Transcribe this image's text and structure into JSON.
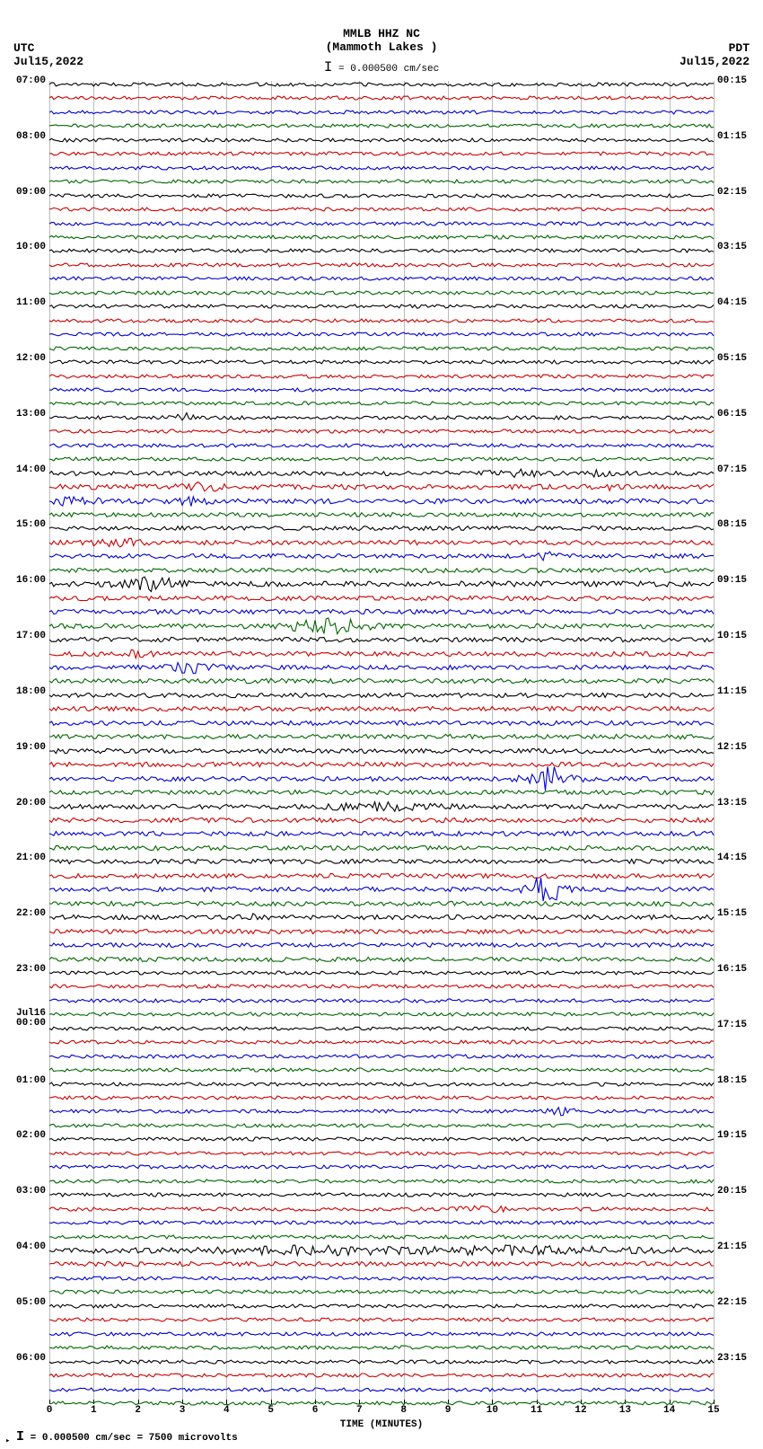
{
  "header": {
    "title": "MMLB HHZ NC",
    "subtitle": "(Mammoth Lakes )",
    "scale_top": "= 0.000500 cm/sec",
    "tz_left_label": "UTC",
    "tz_left_date": "Jul15,2022",
    "tz_right_label": "PDT",
    "tz_right_date": "Jul15,2022"
  },
  "axes": {
    "x_label": "TIME (MINUTES)",
    "x_ticks": [
      "0",
      "1",
      "2",
      "3",
      "4",
      "5",
      "6",
      "7",
      "8",
      "9",
      "10",
      "11",
      "12",
      "13",
      "14",
      "15"
    ],
    "grid_color": "#bcbcbc",
    "background_color": "#ffffff",
    "text_color": "#000000",
    "trace_colors": [
      "#000000",
      "#cc0000",
      "#0000cc",
      "#006600"
    ],
    "num_traces": 96,
    "row_spacing_frac": 0.01042,
    "font_family": "Courier New",
    "font_size_label": 11,
    "font_size_title": 13,
    "trace_linewidth": 1.1,
    "noise_amp_base": 2.0
  },
  "left_ticks": [
    {
      "row": 0,
      "label": "07:00"
    },
    {
      "row": 4,
      "label": "08:00"
    },
    {
      "row": 8,
      "label": "09:00"
    },
    {
      "row": 12,
      "label": "10:00"
    },
    {
      "row": 16,
      "label": "11:00"
    },
    {
      "row": 20,
      "label": "12:00"
    },
    {
      "row": 24,
      "label": "13:00"
    },
    {
      "row": 28,
      "label": "14:00"
    },
    {
      "row": 32,
      "label": "15:00"
    },
    {
      "row": 36,
      "label": "16:00"
    },
    {
      "row": 40,
      "label": "17:00"
    },
    {
      "row": 44,
      "label": "18:00"
    },
    {
      "row": 48,
      "label": "19:00"
    },
    {
      "row": 52,
      "label": "20:00"
    },
    {
      "row": 56,
      "label": "21:00"
    },
    {
      "row": 60,
      "label": "22:00"
    },
    {
      "row": 64,
      "label": "23:00"
    },
    {
      "row": 68,
      "label": "Jul16\n00:00"
    },
    {
      "row": 72,
      "label": "01:00"
    },
    {
      "row": 76,
      "label": "02:00"
    },
    {
      "row": 80,
      "label": "03:00"
    },
    {
      "row": 84,
      "label": "04:00"
    },
    {
      "row": 88,
      "label": "05:00"
    },
    {
      "row": 92,
      "label": "06:00"
    }
  ],
  "right_ticks": [
    {
      "row": 0,
      "label": "00:15"
    },
    {
      "row": 4,
      "label": "01:15"
    },
    {
      "row": 8,
      "label": "02:15"
    },
    {
      "row": 12,
      "label": "03:15"
    },
    {
      "row": 16,
      "label": "04:15"
    },
    {
      "row": 20,
      "label": "05:15"
    },
    {
      "row": 24,
      "label": "06:15"
    },
    {
      "row": 28,
      "label": "07:15"
    },
    {
      "row": 32,
      "label": "08:15"
    },
    {
      "row": 36,
      "label": "09:15"
    },
    {
      "row": 40,
      "label": "10:15"
    },
    {
      "row": 44,
      "label": "11:15"
    },
    {
      "row": 48,
      "label": "12:15"
    },
    {
      "row": 52,
      "label": "13:15"
    },
    {
      "row": 56,
      "label": "14:15"
    },
    {
      "row": 60,
      "label": "15:15"
    },
    {
      "row": 64,
      "label": "16:15"
    },
    {
      "row": 68,
      "label": "17:15"
    },
    {
      "row": 72,
      "label": "18:15"
    },
    {
      "row": 76,
      "label": "19:15"
    },
    {
      "row": 80,
      "label": "20:15"
    },
    {
      "row": 84,
      "label": "21:15"
    },
    {
      "row": 88,
      "label": "22:15"
    },
    {
      "row": 92,
      "label": "23:15"
    }
  ],
  "events": [
    {
      "row": 24,
      "minute": 3.0,
      "width": 0.5,
      "amp": 4
    },
    {
      "row": 28,
      "minute": 10.5,
      "width": 1.2,
      "amp": 3
    },
    {
      "row": 28,
      "minute": 12.5,
      "width": 0.5,
      "amp": 3
    },
    {
      "row": 29,
      "minute": 3.5,
      "width": 0.8,
      "amp": 3
    },
    {
      "row": 29,
      "minute": 12.8,
      "width": 0.4,
      "amp": 3
    },
    {
      "row": 30,
      "minute": 0.6,
      "width": 0.8,
      "amp": 4
    },
    {
      "row": 30,
      "minute": 3.2,
      "width": 0.6,
      "amp": 3
    },
    {
      "row": 33,
      "minute": 1.5,
      "width": 1.0,
      "amp": 3
    },
    {
      "row": 34,
      "minute": 11.2,
      "width": 0.5,
      "amp": 3
    },
    {
      "row": 36,
      "minute": 2.3,
      "width": 1.2,
      "amp": 6
    },
    {
      "row": 39,
      "minute": 6.3,
      "width": 1.4,
      "amp": 8
    },
    {
      "row": 41,
      "minute": 2.0,
      "width": 0.5,
      "amp": 3
    },
    {
      "row": 42,
      "minute": 3.2,
      "width": 0.8,
      "amp": 5
    },
    {
      "row": 50,
      "minute": 11.3,
      "width": 0.9,
      "amp": 12
    },
    {
      "row": 52,
      "minute": 7.5,
      "width": 2.0,
      "amp": 3
    },
    {
      "row": 58,
      "minute": 11.2,
      "width": 0.7,
      "amp": 15
    },
    {
      "row": 60,
      "minute": 4.5,
      "width": 0.5,
      "amp": 3
    },
    {
      "row": 74,
      "minute": 11.5,
      "width": 0.6,
      "amp": 3
    },
    {
      "row": 81,
      "minute": 9.8,
      "width": 1.0,
      "amp": 3
    },
    {
      "row": 84,
      "minute": 6.0,
      "width": 3.0,
      "amp": 3
    },
    {
      "row": 84,
      "minute": 10.5,
      "width": 4.0,
      "amp": 3
    }
  ],
  "row_base_amp": {
    "28": 2.5,
    "29": 2.8,
    "30": 2.8,
    "31": 2.4,
    "32": 2.4,
    "33": 2.6,
    "34": 2.5,
    "35": 2.6,
    "36": 3.0,
    "37": 2.6,
    "38": 2.6,
    "39": 2.6,
    "40": 2.6,
    "41": 2.6,
    "42": 2.6,
    "43": 2.6,
    "44": 2.6,
    "45": 2.6,
    "46": 2.6,
    "47": 2.6,
    "48": 2.6,
    "49": 2.6,
    "50": 2.6,
    "51": 2.6,
    "52": 2.6,
    "53": 2.6,
    "54": 2.6,
    "55": 2.6,
    "56": 2.6,
    "57": 2.6,
    "58": 2.6,
    "59": 2.6,
    "60": 2.6,
    "61": 2.5,
    "62": 2.4,
    "63": 2.4,
    "84": 3.2,
    "85": 2.6
  },
  "footer": {
    "text": "= 0.000500 cm/sec =    7500 microvolts"
  }
}
